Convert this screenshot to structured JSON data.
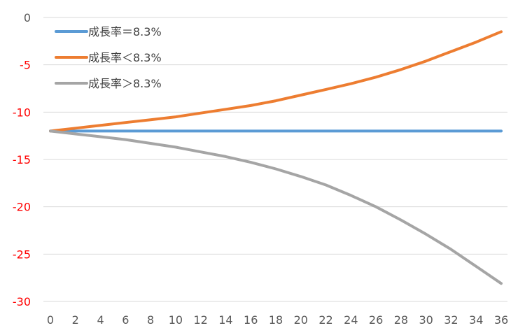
{
  "chart_data": {
    "type": "line",
    "title": "",
    "xlabel": "",
    "ylabel": "",
    "x": [
      0,
      2,
      4,
      6,
      8,
      10,
      12,
      14,
      16,
      18,
      20,
      22,
      24,
      26,
      28,
      30,
      32,
      34,
      36
    ],
    "x_ticks": [
      "0",
      "2",
      "4",
      "6",
      "8",
      "10",
      "12",
      "14",
      "16",
      "18",
      "20",
      "22",
      "24",
      "26",
      "28",
      "30",
      "32",
      "34",
      "36"
    ],
    "y_ticks": [
      "0",
      "-5",
      "-10",
      "-15",
      "-20",
      "-25",
      "-30"
    ],
    "y_tick_values": [
      0,
      -5,
      -10,
      -15,
      -20,
      -25,
      -30
    ],
    "xlim": [
      0,
      36
    ],
    "ylim": [
      -30,
      0
    ],
    "grid": "horizontal",
    "legend_position": "top-left",
    "colors": {
      "negative_tick": "#ff0000",
      "zero_tick": "#595959",
      "grid": "#d9d9d9"
    },
    "series": [
      {
        "name": "成長率＝8.3%",
        "color": "#5b9bd5",
        "values": [
          -12.0,
          -12.0,
          -12.0,
          -12.0,
          -12.0,
          -12.0,
          -12.0,
          -12.0,
          -12.0,
          -12.0,
          -12.0,
          -12.0,
          -12.0,
          -12.0,
          -12.0,
          -12.0,
          -12.0,
          -12.0,
          -12.0
        ]
      },
      {
        "name": "成長率＜8.3%",
        "color": "#ed7d31",
        "values": [
          -12.0,
          -11.7,
          -11.4,
          -11.1,
          -10.8,
          -10.5,
          -10.1,
          -9.7,
          -9.3,
          -8.8,
          -8.2,
          -7.6,
          -7.0,
          -6.3,
          -5.5,
          -4.6,
          -3.6,
          -2.6,
          -1.5
        ]
      },
      {
        "name": "成長率＞8.3%",
        "color": "#a5a5a5",
        "values": [
          -12.0,
          -12.3,
          -12.6,
          -12.9,
          -13.3,
          -13.7,
          -14.2,
          -14.7,
          -15.3,
          -16.0,
          -16.8,
          -17.7,
          -18.8,
          -20.0,
          -21.4,
          -22.9,
          -24.5,
          -26.3,
          -28.1
        ]
      }
    ]
  }
}
